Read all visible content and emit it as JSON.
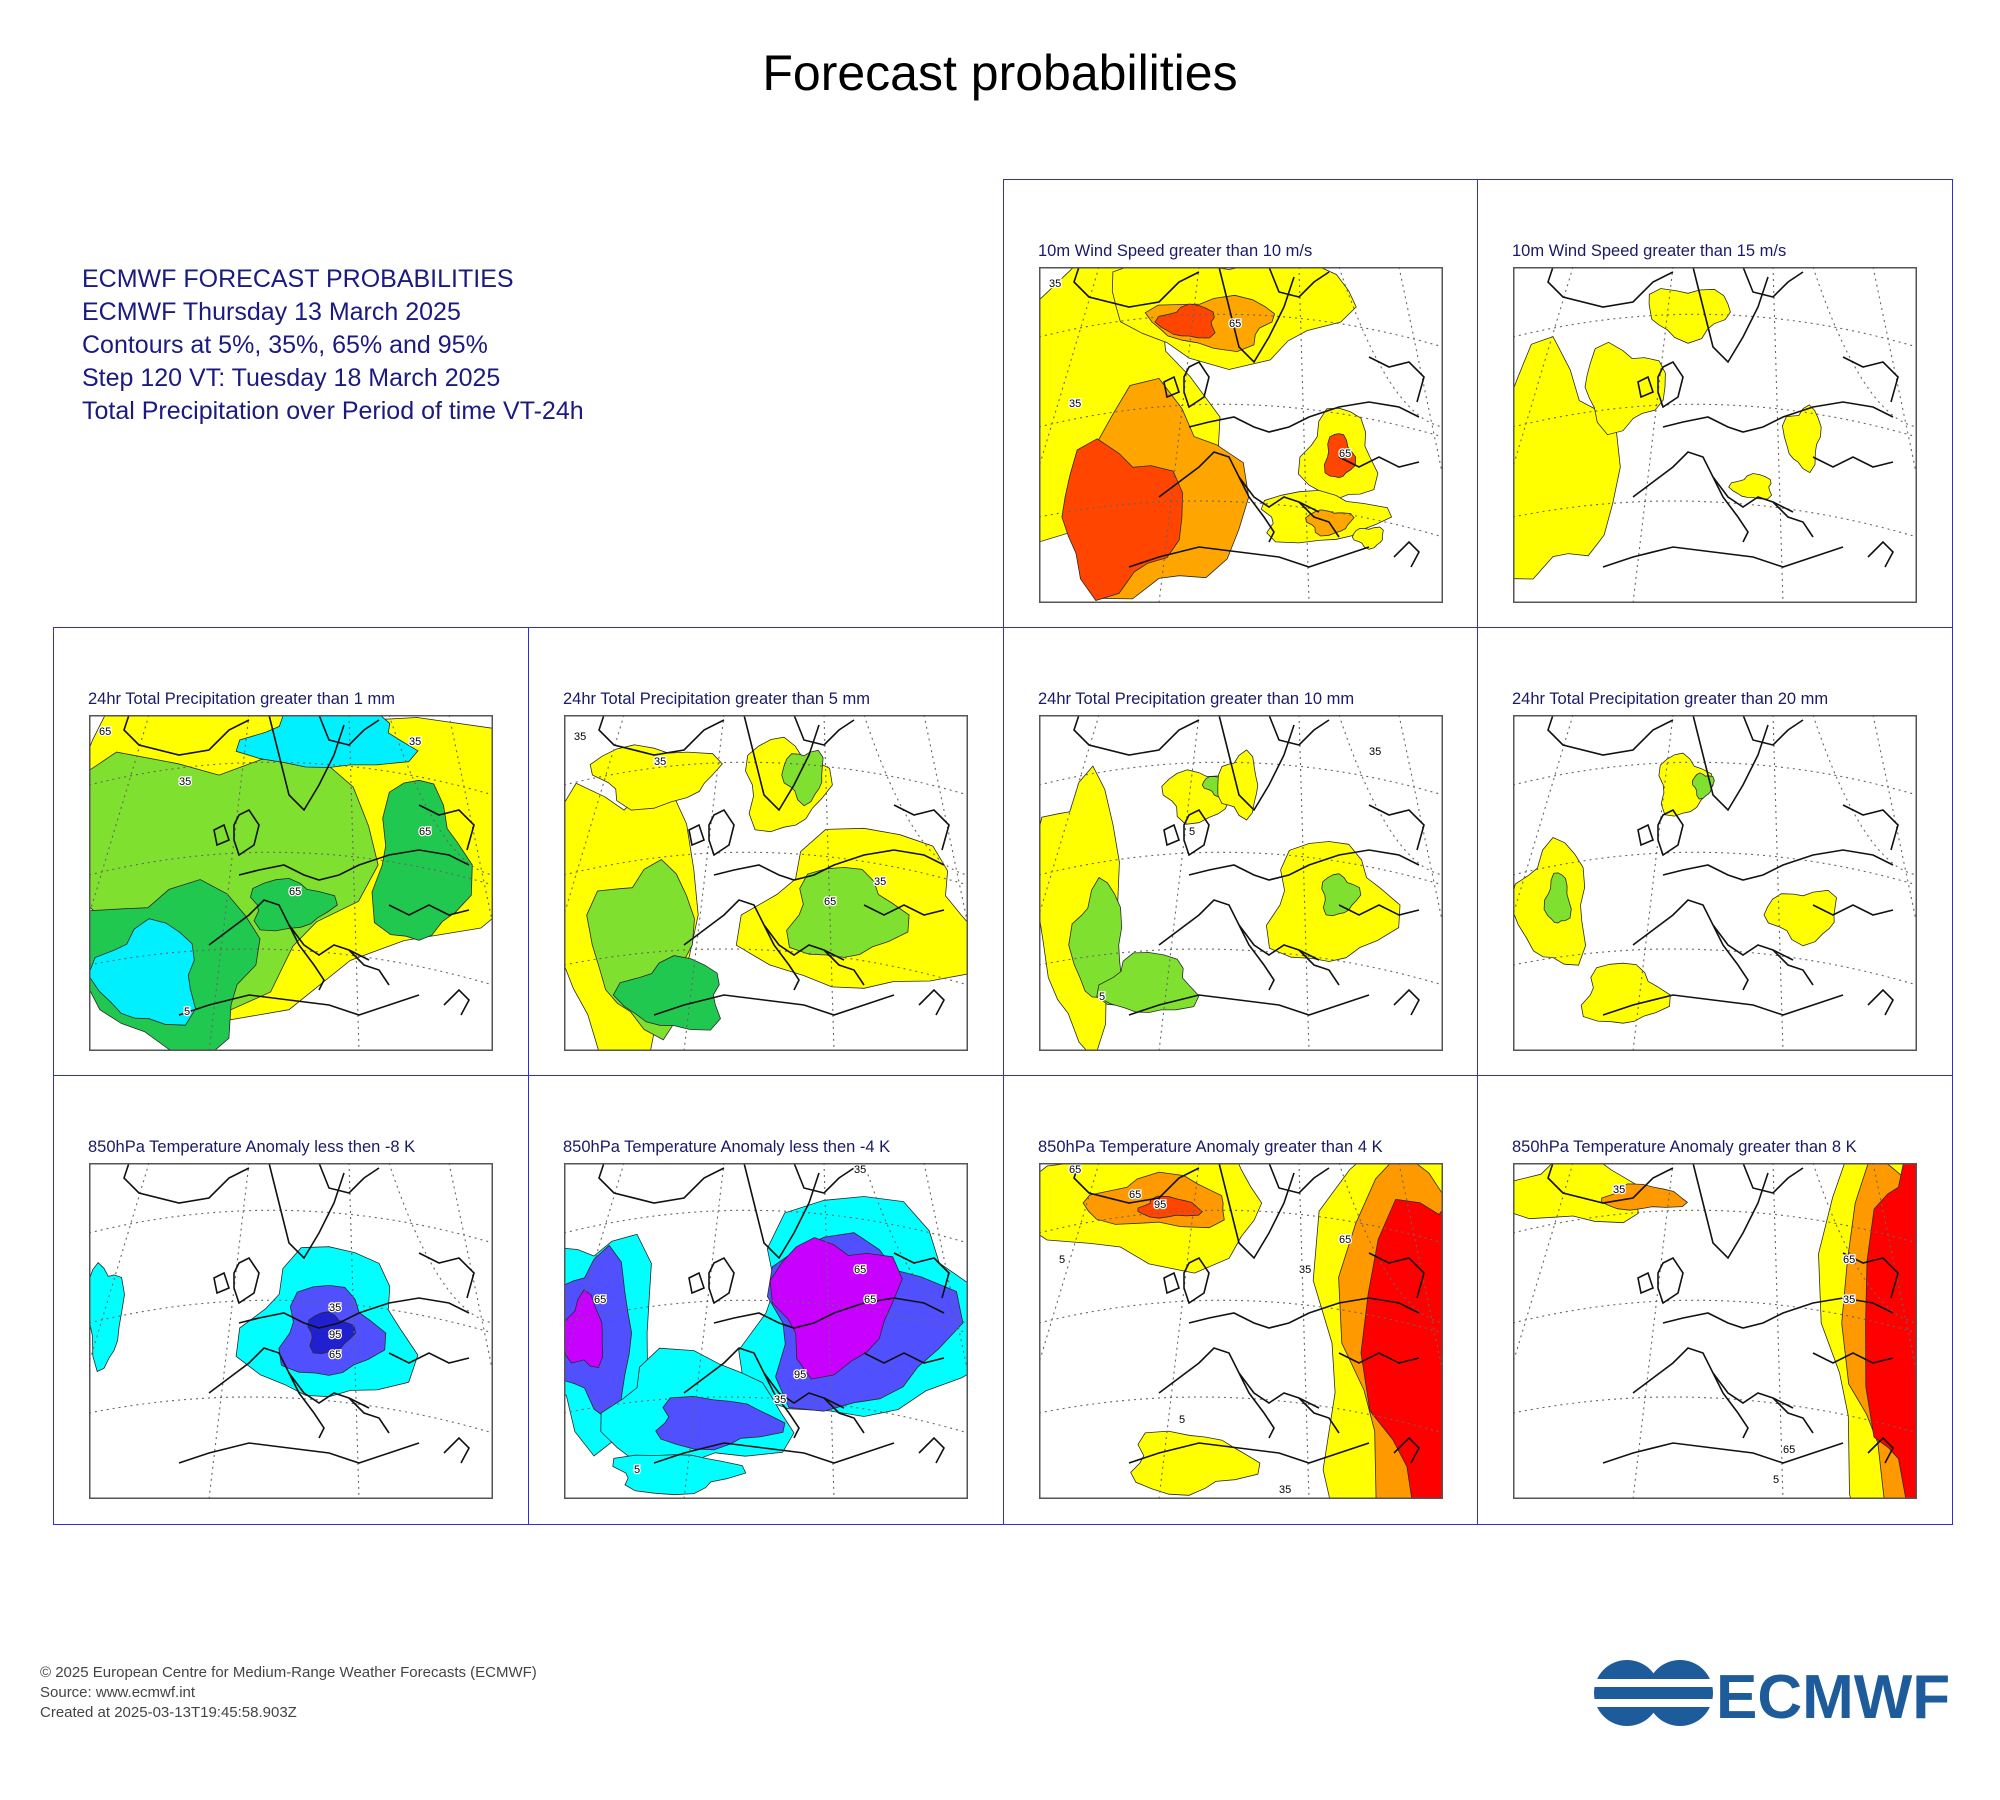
{
  "page_title": "Forecast probabilities",
  "info": [
    "ECMWF FORECAST PROBABILITIES",
    "ECMWF Thursday 13 March 2025",
    "Contours at 5%, 35%, 65% and 95%",
    "Step 120 VT: Tuesday 18 March 2025",
    "Total Precipitation over Period of time VT-24h"
  ],
  "colors": {
    "frame": "#3030d8",
    "wind": [
      "#ffff00",
      "#ffa500",
      "#ff4500",
      "#c83200"
    ],
    "precip": [
      "#ffff00",
      "#80e030",
      "#20c850",
      "#00f0ff"
    ],
    "cold": [
      "#00ffff",
      "#5050ff",
      "#2020d0",
      "#c800ff"
    ],
    "warm": [
      "#ffff00",
      "#ff9900",
      "#ff4500",
      "#ff0000"
    ]
  },
  "panels": [
    {
      "title": "10m Wind Speed greater than 10 m/s",
      "palette": "wind"
    },
    {
      "title": "10m Wind Speed greater than 15 m/s",
      "palette": "wind"
    },
    {
      "title": "24hr Total Precipitation greater than 1 mm",
      "palette": "precip"
    },
    {
      "title": "24hr Total Precipitation greater than 5 mm",
      "palette": "precip"
    },
    {
      "title": "24hr Total Precipitation greater than 10 mm",
      "palette": "precip"
    },
    {
      "title": "24hr Total Precipitation greater than 20 mm",
      "palette": "precip"
    },
    {
      "title": "850hPa Temperature Anomaly less then -8 K",
      "palette": "cold"
    },
    {
      "title": "850hPa Temperature Anomaly less then -4 K",
      "palette": "cold"
    },
    {
      "title": "850hPa Temperature Anomaly greater than 4 K",
      "palette": "warm"
    },
    {
      "title": "850hPa Temperature Anomaly greater than 8 K",
      "palette": "warm"
    }
  ],
  "contour_labels": [
    "5",
    "35",
    "65",
    "95"
  ],
  "footer": [
    "© 2025 European Centre for Medium-Range Weather Forecasts (ECMWF)",
    "Source: www.ecmwf.int",
    "Created at 2025-03-13T19:45:58.903Z"
  ],
  "logo_text": "ECMWF"
}
